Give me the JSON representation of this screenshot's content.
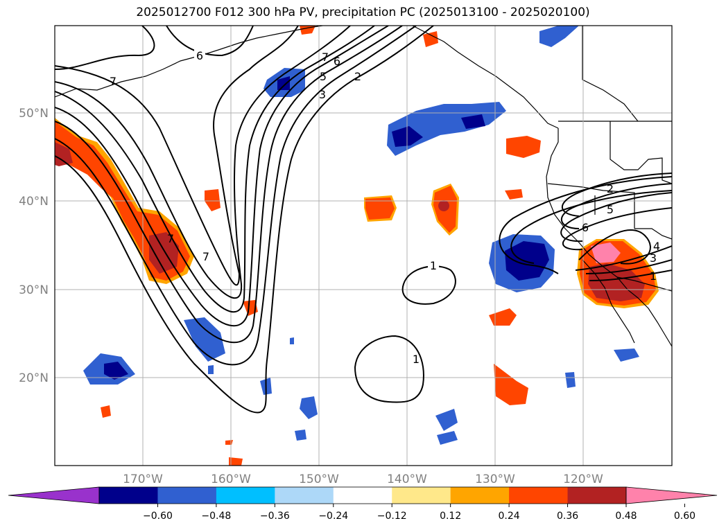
{
  "title": "2025012700 F012 300 hPa PV, precipitation PC (2025013100 - 2025020100)",
  "lat_labels": [
    "50°N",
    "40°N",
    "30°N",
    "20°N"
  ],
  "lon_labels": [
    "170°W",
    "160°W",
    "150°W",
    "140°W",
    "130°W",
    "120°W"
  ],
  "contour_labels": [
    "6",
    "7",
    "7",
    "6",
    "5",
    "3",
    "2",
    "7",
    "7",
    "1",
    "1",
    "2",
    "5",
    "6",
    "4",
    "3",
    "1"
  ],
  "colorbar": {
    "colors": [
      "#9932cc",
      "#00008b",
      "#3060d0",
      "#00bfff",
      "#add8f8",
      "#ffffff",
      "#ffe88a",
      "#ffa500",
      "#ff4500",
      "#b22222",
      "#ff82ab"
    ],
    "ticks": [
      "−0.60",
      "−0.48",
      "−0.36",
      "−0.24",
      "−0.12",
      "0.12",
      "0.24",
      "0.36",
      "0.48",
      "0.60"
    ]
  }
}
